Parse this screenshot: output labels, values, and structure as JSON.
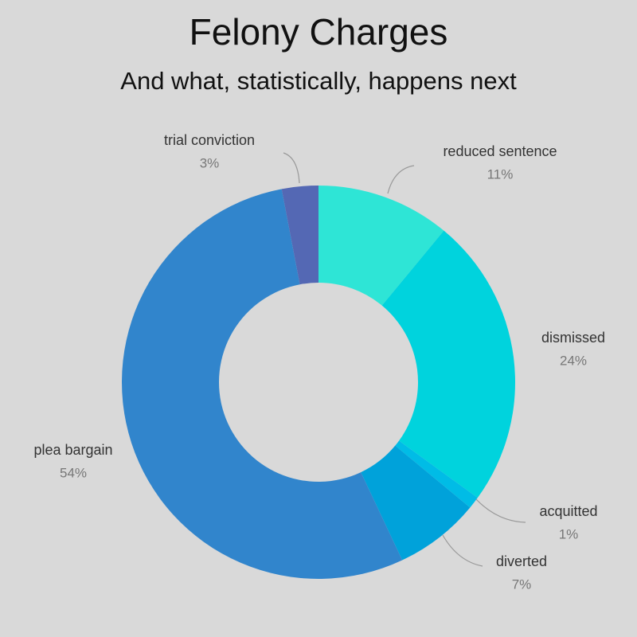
{
  "chart_data": {
    "type": "donut",
    "title": "Felony Charges",
    "subtitle": "And what, statistically, happens next",
    "categories": [
      "reduced sentence",
      "dismissed",
      "acquitted",
      "diverted",
      "plea bargain",
      "trial conviction"
    ],
    "values": [
      11,
      24,
      1,
      7,
      54,
      3
    ],
    "value_labels": [
      "11%",
      "24%",
      "1%",
      "7%",
      "54%",
      "3%"
    ],
    "colors": [
      "#2ee5d6",
      "#00d3dd",
      "#00bce6",
      "#00a2da",
      "#3185cc",
      "#5468b4"
    ]
  }
}
